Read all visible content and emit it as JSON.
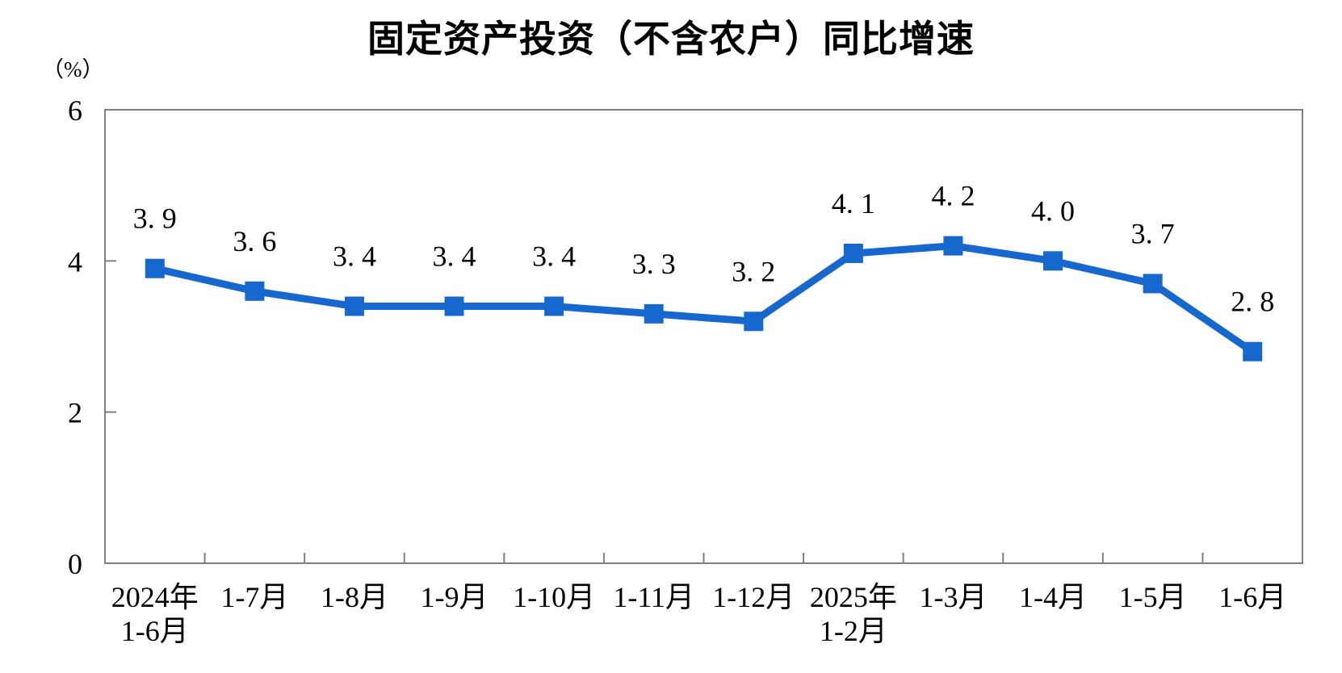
{
  "chart": {
    "title": "固定资产投资（不含农户）同比增速",
    "y_axis_unit": "（%）"
  },
  "chart_data": {
    "type": "line",
    "title": "固定资产投资（不含农户）同比增速",
    "xlabel": "",
    "ylabel": "（%）",
    "categories": [
      [
        "2024年",
        "1-6月"
      ],
      [
        "1-7月"
      ],
      [
        "1-8月"
      ],
      [
        "1-9月"
      ],
      [
        "1-10月"
      ],
      [
        "1-11月"
      ],
      [
        "1-12月"
      ],
      [
        "2025年",
        "1-2月"
      ],
      [
        "1-3月"
      ],
      [
        "1-4月"
      ],
      [
        "1-5月"
      ],
      [
        "1-6月"
      ]
    ],
    "values": [
      3.9,
      3.6,
      3.4,
      3.4,
      3.4,
      3.3,
      3.2,
      4.1,
      4.2,
      4.0,
      3.7,
      2.8
    ],
    "point_labels": [
      "3. 9",
      "3. 6",
      "3. 4",
      "3. 4",
      "3. 4",
      "3. 3",
      "3. 2",
      "4. 1",
      "4. 2",
      "4. 0",
      "3. 7",
      "2. 8"
    ],
    "ylim": [
      0,
      6
    ],
    "yticks": [
      0,
      2,
      4,
      6
    ],
    "grid": false,
    "legend": "none",
    "marker": "square",
    "colors": {
      "line": "#1668cf",
      "marker": "#1668cf",
      "axis": "#7f7f7f",
      "text": "#000000"
    }
  }
}
